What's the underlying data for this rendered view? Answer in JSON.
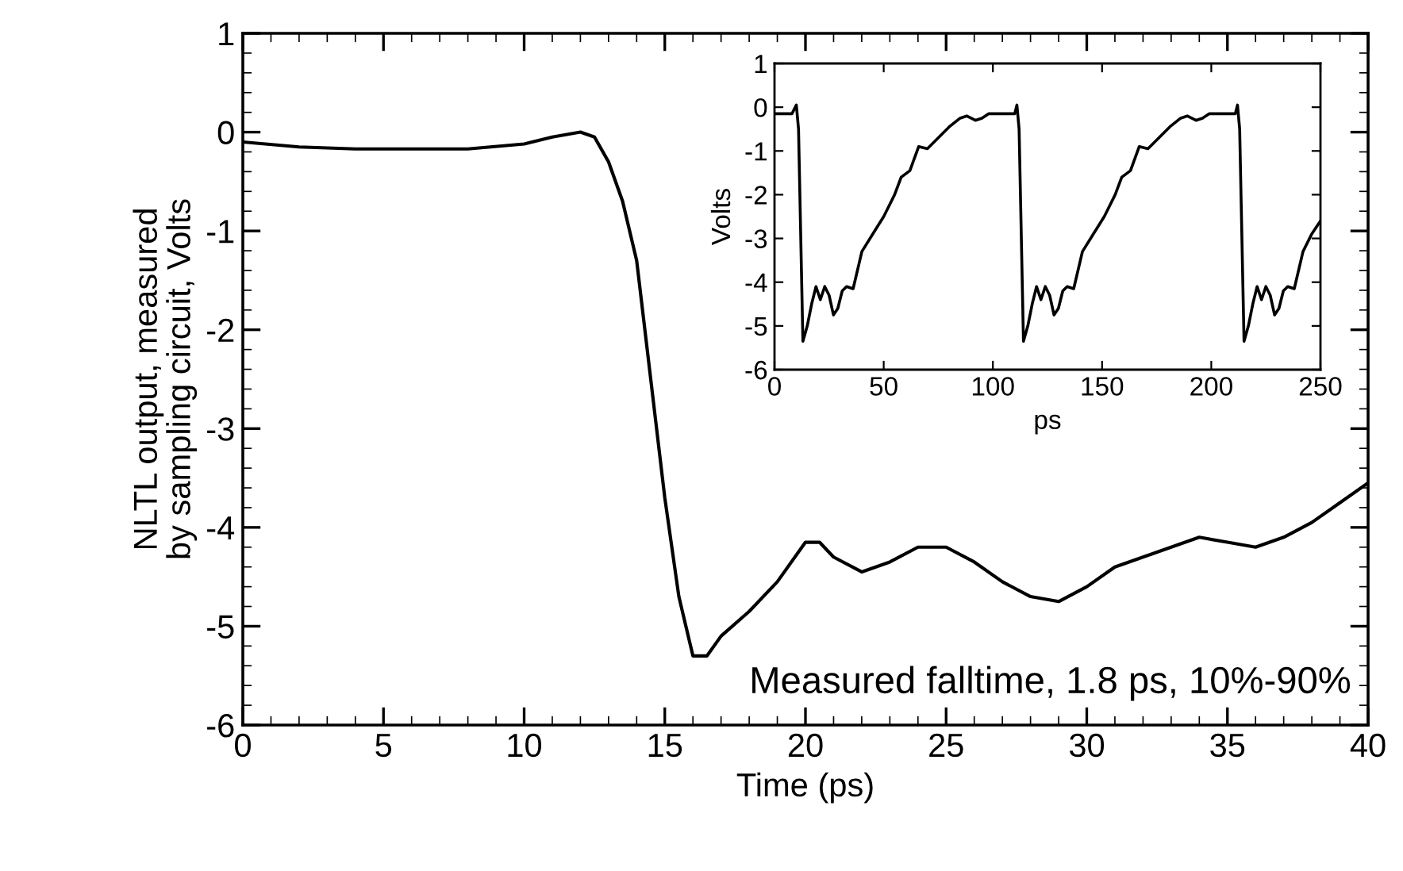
{
  "chart_data": [
    {
      "type": "line",
      "xlabel": "Time (ps)",
      "ylabel": "NLTL output, measured\nby sampling circuit, Volts",
      "xlim": [
        0,
        40
      ],
      "xticks": [
        0,
        5,
        10,
        15,
        20,
        25,
        30,
        35,
        40
      ],
      "ylim": [
        -6,
        1
      ],
      "yticks": [
        -6,
        -5,
        -4,
        -3,
        -2,
        -1,
        0,
        1
      ],
      "grid": false,
      "legend": false,
      "annotations": [
        "Measured falltime, 1.8 ps, 10%-90%"
      ],
      "series": [
        {
          "color": "#000000",
          "x": [
            0,
            2,
            4,
            6,
            8,
            10,
            11,
            12,
            12.5,
            13,
            13.5,
            14,
            14.5,
            15,
            15.5,
            16,
            16.5,
            17,
            18,
            19,
            20,
            20.5,
            21,
            22,
            23,
            24,
            25,
            26,
            27,
            28,
            29,
            30,
            31,
            32,
            33,
            34,
            35,
            36,
            37,
            38,
            39,
            40
          ],
          "values": [
            -0.1,
            -0.15,
            -0.17,
            -0.17,
            -0.17,
            -0.12,
            -0.05,
            0.0,
            -0.05,
            -0.3,
            -0.7,
            -1.3,
            -2.5,
            -3.7,
            -4.7,
            -5.3,
            -5.3,
            -5.1,
            -4.85,
            -4.55,
            -4.15,
            -4.15,
            -4.3,
            -4.45,
            -4.35,
            -4.2,
            -4.2,
            -4.35,
            -4.55,
            -4.7,
            -4.75,
            -4.6,
            -4.4,
            -4.3,
            -4.2,
            -4.1,
            -4.15,
            -4.2,
            -4.1,
            -3.95,
            -3.75,
            -3.55
          ]
        }
      ]
    },
    {
      "type": "line",
      "xlabel": "ps",
      "ylabel": "Volts",
      "xlim": [
        0,
        250
      ],
      "xticks": [
        0,
        50,
        100,
        150,
        200,
        250
      ],
      "ylim": [
        -6,
        1
      ],
      "yticks": [
        -6,
        -5,
        -4,
        -3,
        -2,
        -1,
        0,
        1
      ],
      "grid": false,
      "legend": false,
      "series": [
        {
          "color": "#000000",
          "x": [
            0,
            5,
            8,
            10,
            11,
            13,
            15,
            17,
            19,
            21,
            23,
            25,
            27,
            29,
            31,
            33,
            36,
            40,
            45,
            50,
            55,
            58,
            62,
            66,
            70,
            75,
            80,
            85,
            88,
            92,
            95,
            98,
            105,
            110,
            111,
            112,
            114,
            116,
            118,
            120,
            122,
            124,
            126,
            128,
            130,
            132,
            134,
            137,
            141,
            146,
            151,
            156,
            159,
            163,
            167,
            171,
            176,
            181,
            186,
            189,
            193,
            196,
            199,
            206,
            211,
            212,
            213,
            215,
            217,
            219,
            221,
            223,
            225,
            227,
            229,
            231,
            233,
            235,
            238,
            242,
            246,
            250
          ],
          "values": [
            -0.15,
            -0.15,
            -0.15,
            0.05,
            -0.5,
            -5.35,
            -5.0,
            -4.5,
            -4.1,
            -4.4,
            -4.1,
            -4.3,
            -4.75,
            -4.6,
            -4.2,
            -4.1,
            -4.15,
            -3.3,
            -2.9,
            -2.5,
            -2.0,
            -1.6,
            -1.45,
            -0.9,
            -0.95,
            -0.7,
            -0.45,
            -0.25,
            -0.2,
            -0.3,
            -0.25,
            -0.15,
            -0.15,
            -0.15,
            0.05,
            -0.5,
            -5.35,
            -5.0,
            -4.5,
            -4.1,
            -4.4,
            -4.1,
            -4.3,
            -4.75,
            -4.6,
            -4.2,
            -4.1,
            -4.15,
            -3.3,
            -2.9,
            -2.5,
            -2.0,
            -1.6,
            -1.45,
            -0.9,
            -0.95,
            -0.7,
            -0.45,
            -0.25,
            -0.2,
            -0.3,
            -0.25,
            -0.15,
            -0.15,
            -0.15,
            0.05,
            -0.5,
            -5.35,
            -5.0,
            -4.5,
            -4.1,
            -4.4,
            -4.1,
            -4.3,
            -4.75,
            -4.6,
            -4.2,
            -4.1,
            -4.15,
            -3.3,
            -2.9,
            -2.6
          ]
        }
      ]
    }
  ]
}
